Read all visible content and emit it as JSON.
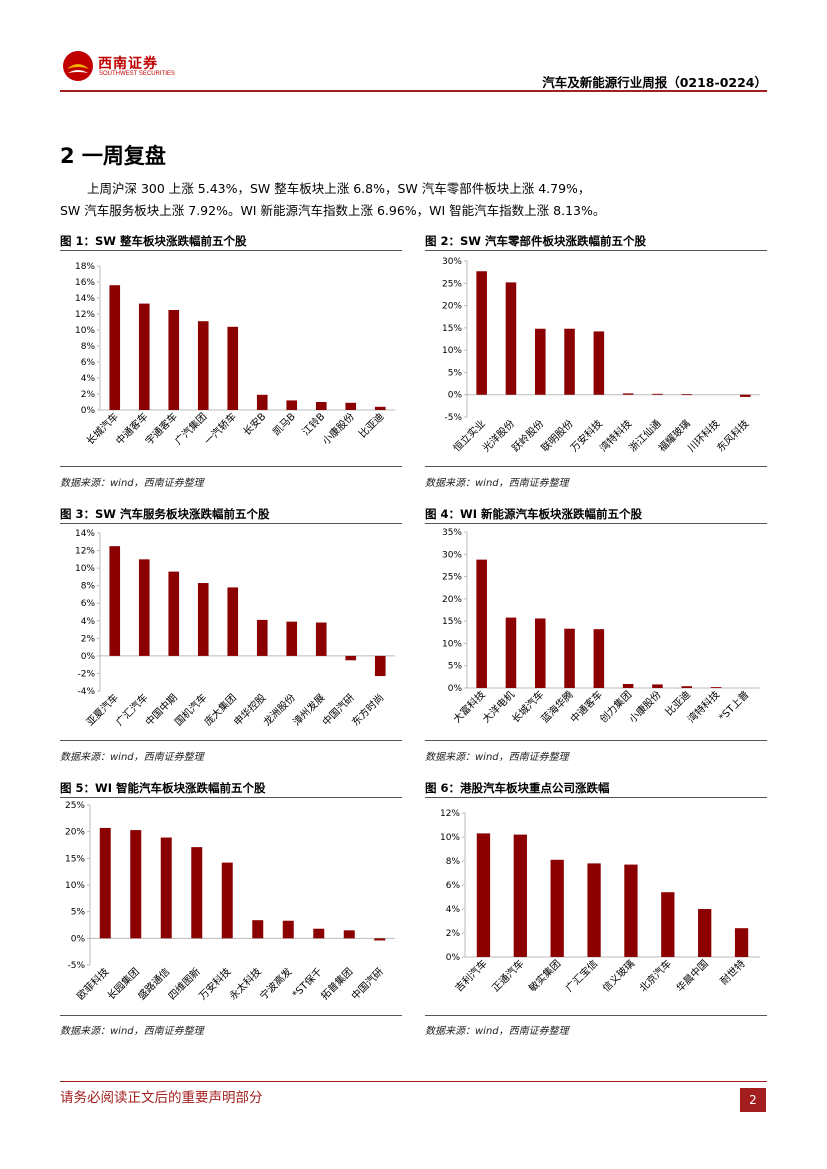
{
  "header": {
    "logo_cn": "西南证券",
    "logo_en": "SOUTHWEST SECURITIES",
    "report_title": "汽车及新能源行业周报（0218-0224）",
    "accent_color": "#a31f1f"
  },
  "section": {
    "title": "2  一周复盘",
    "para1": "上周沪深 300 上涨 5.43%，SW 整车板块上涨 6.8%，SW 汽车零部件板块上涨 4.79%，",
    "para2": "SW 汽车服务板块上涨 7.92%。WI 新能源汽车指数上涨 6.96%，WI 智能汽车指数上涨 8.13%。"
  },
  "figures": [
    {
      "title": "图 1：SW 整车板块涨跌幅前五个股",
      "source": "数据来源：wind，西南证券整理"
    },
    {
      "title": "图 2：SW 汽车零部件板块涨跌幅前五个股",
      "source": "数据来源：wind，西南证券整理"
    },
    {
      "title": "图 3：SW 汽车服务板块涨跌幅前五个股",
      "source": "数据来源：wind，西南证券整理"
    },
    {
      "title": "图 4：WI 新能源汽车板块涨跌幅前五个股",
      "source": "数据来源：wind，西南证券整理"
    },
    {
      "title": "图 5：WI 智能汽车板块涨跌幅前五个股",
      "source": "数据来源：wind，西南证券整理"
    },
    {
      "title": "图 6：港股汽车板块重点公司涨跌幅",
      "source": "数据来源：wind，西南证券整理"
    }
  ],
  "chart_data": [
    {
      "type": "bar",
      "bar_color": "#8b0000",
      "categories": [
        "长城汽车",
        "中通客车",
        "宇通客车",
        "广汽集团",
        "一汽轿车",
        "长安B",
        "凯马B",
        "江铃B",
        "小康股份",
        "比亚迪"
      ],
      "values": [
        15.6,
        13.3,
        12.5,
        11.1,
        10.4,
        1.9,
        1.2,
        1.0,
        0.9,
        0.4
      ],
      "ylim": [
        0,
        18
      ],
      "yticks": [
        0,
        2,
        4,
        6,
        8,
        10,
        12,
        14,
        16,
        18
      ]
    },
    {
      "type": "bar",
      "bar_color": "#8b0000",
      "categories": [
        "恒立实业",
        "光洋股份",
        "跃岭股份",
        "联明股份",
        "万安科技",
        "湾特科技",
        "浙江仙通",
        "福耀玻璃",
        "川环科技",
        "东风科技"
      ],
      "values": [
        27.7,
        25.2,
        14.8,
        14.8,
        14.2,
        0.3,
        0.2,
        0.1,
        0.0,
        -0.5
      ],
      "ylim": [
        -5,
        30
      ],
      "yticks": [
        -5,
        0,
        5,
        10,
        15,
        20,
        25,
        30
      ]
    },
    {
      "type": "bar",
      "bar_color": "#8b0000",
      "categories": [
        "亚夏汽车",
        "广汇汽车",
        "中国中期",
        "国机汽车",
        "庞大集团",
        "申华控股",
        "龙洲股份",
        "漳州发展",
        "中国汽研",
        "东方时尚"
      ],
      "values": [
        12.5,
        11.0,
        9.6,
        8.3,
        7.8,
        4.1,
        3.9,
        3.8,
        -0.5,
        -2.3
      ],
      "ylim": [
        -4,
        14
      ],
      "yticks": [
        -4,
        -2,
        0,
        2,
        4,
        6,
        8,
        10,
        12,
        14
      ]
    },
    {
      "type": "bar",
      "bar_color": "#8b0000",
      "categories": [
        "大富科技",
        "大洋电机",
        "长城汽车",
        "蓝海华腾",
        "中通客车",
        "创力集团",
        "小康股份",
        "比亚迪",
        "湾特科技",
        "*ST上普"
      ],
      "values": [
        28.8,
        15.8,
        15.6,
        13.3,
        13.2,
        0.9,
        0.8,
        0.4,
        0.2,
        0.0
      ],
      "ylim": [
        0,
        35
      ],
      "yticks": [
        0,
        5,
        10,
        15,
        20,
        25,
        30,
        35
      ]
    },
    {
      "type": "bar",
      "bar_color": "#8b0000",
      "categories": [
        "欧菲科技",
        "长园集团",
        "盛路通信",
        "四维图新",
        "万安科技",
        "永太科技",
        "宁波高发",
        "*ST保千",
        "拓普集团",
        "中国汽研"
      ],
      "values": [
        20.7,
        20.3,
        18.9,
        17.1,
        14.2,
        3.4,
        3.3,
        1.8,
        1.5,
        -0.4
      ],
      "ylim": [
        -5,
        25
      ],
      "yticks": [
        -5,
        0,
        5,
        10,
        15,
        20,
        25
      ]
    },
    {
      "type": "bar",
      "bar_color": "#8b0000",
      "categories": [
        "吉利汽车",
        "正通汽车",
        "敏实集团",
        "广汇宝信",
        "信义玻璃",
        "北京汽车",
        "华晨中国",
        "耐世特"
      ],
      "values": [
        10.3,
        10.2,
        8.1,
        7.8,
        7.7,
        5.4,
        4.0,
        2.4
      ],
      "ylim": [
        0,
        12
      ],
      "yticks": [
        0,
        2,
        4,
        6,
        8,
        10,
        12
      ]
    }
  ],
  "footer": {
    "disclaimer": "请务必阅读正文后的重要声明部分",
    "page_number": "2"
  }
}
